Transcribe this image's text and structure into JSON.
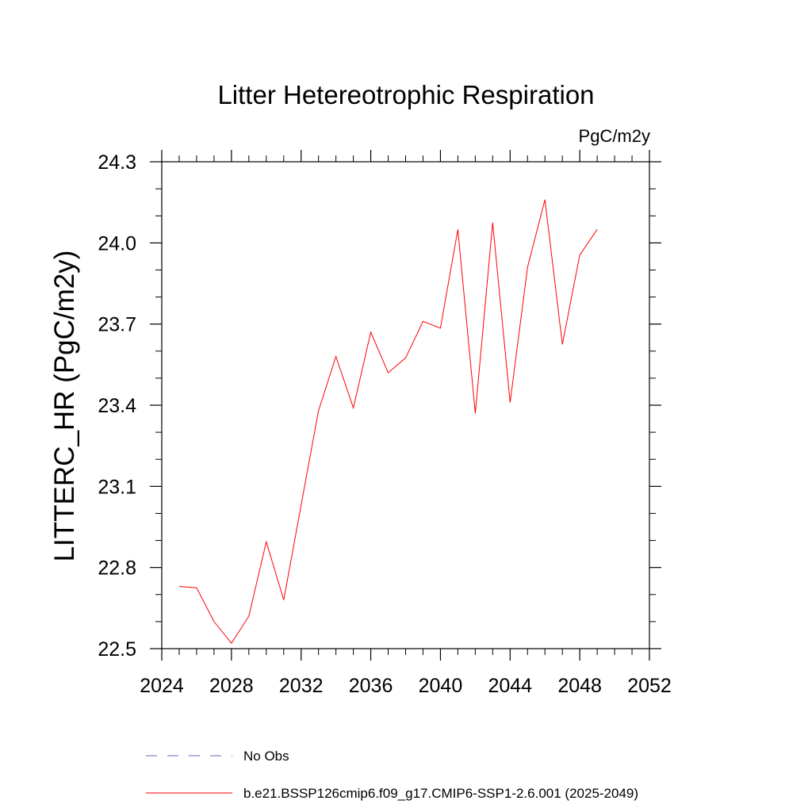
{
  "chart_data": {
    "type": "line",
    "title": "Litter Hetereotrophic Respiration",
    "units_label": "PgC/m2y",
    "xlabel": "",
    "ylabel": "LITTERC_HR  (PgC/m2y)",
    "xlim": [
      2024,
      2052
    ],
    "ylim": [
      22.5,
      24.3
    ],
    "x_ticks": [
      2024,
      2028,
      2032,
      2036,
      2040,
      2044,
      2048,
      2052
    ],
    "y_ticks": [
      "22.5",
      "22.8",
      "23.1",
      "23.4",
      "23.7",
      "24.0",
      "24.3"
    ],
    "grid": false,
    "legend_position": "bottom",
    "series": [
      {
        "name": "b.e21.BSSP126cmip6.f09_g17.CMIP6-SSP1-2.6.001 (2025-2049)",
        "color": "#ff0000",
        "dash": "solid",
        "x": [
          2025,
          2026,
          2027,
          2028,
          2029,
          2030,
          2031,
          2032,
          2033,
          2034,
          2035,
          2036,
          2037,
          2038,
          2039,
          2040,
          2041,
          2042,
          2043,
          2044,
          2045,
          2046,
          2047,
          2048,
          2049
        ],
        "y": [
          22.73,
          22.725,
          22.6,
          22.52,
          22.62,
          22.895,
          22.68,
          23.03,
          23.38,
          23.58,
          23.39,
          23.67,
          23.52,
          23.575,
          23.71,
          23.685,
          24.05,
          23.37,
          24.075,
          23.41,
          23.91,
          24.16,
          23.625,
          23.955,
          24.05
        ]
      }
    ],
    "legend": [
      {
        "label": "No Obs",
        "color": "#6a6ab8",
        "dash": "dashed"
      },
      {
        "label": "b.e21.BSSP126cmip6.f09_g17.CMIP6-SSP1-2.6.001 (2025-2049)",
        "color": "#ff0000",
        "dash": "solid"
      }
    ]
  }
}
